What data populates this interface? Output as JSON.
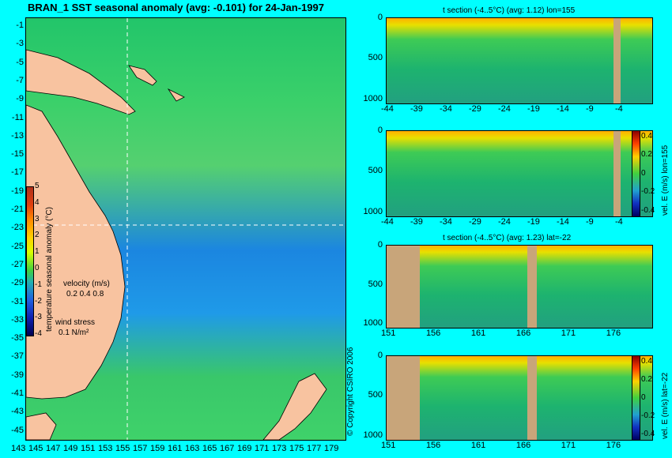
{
  "map": {
    "title": "BRAN_1 SST seasonal anomaly (avg: -0.101) for 24-Jan-1997",
    "lat_ticks": [
      "-1",
      "-3",
      "-5",
      "-7",
      "-9",
      "-11",
      "-13",
      "-15",
      "-17",
      "-19",
      "-21",
      "-23",
      "-25",
      "-27",
      "-29",
      "-31",
      "-33",
      "-35",
      "-37",
      "-39",
      "-41",
      "-43",
      "-45"
    ],
    "lon_ticks": [
      "143",
      "145",
      "147",
      "149",
      "151",
      "153",
      "155",
      "157",
      "159",
      "161",
      "163",
      "165",
      "167",
      "169",
      "171",
      "173",
      "175",
      "177",
      "179"
    ],
    "colorbar": {
      "label": "temperature seasonal anomaly (°C)",
      "ticks": [
        "5",
        "4",
        "3",
        "2",
        "1",
        "0",
        "-1",
        "-2",
        "-3",
        "-4"
      ]
    },
    "legend": {
      "velocity_label": "velocity (m/s)",
      "velocity_scale": "0.2 0.4 0.8",
      "wind_label": "wind stress",
      "wind_scale": "0.1 N/m²"
    },
    "copyright": "© Copyright CSIRO 2006"
  },
  "sections": [
    {
      "title": "t section (-4..5°C) (avg: 1.12) lon=155",
      "x_ticks": [
        "-44",
        "-39",
        "-34",
        "-29",
        "-24",
        "-19",
        "-14",
        "-9",
        "-4"
      ],
      "y_ticks": [
        "0",
        "500",
        "1000"
      ]
    },
    {
      "title": "",
      "x_ticks": [
        "-44",
        "-39",
        "-34",
        "-29",
        "-24",
        "-19",
        "-14",
        "-9",
        "-4"
      ],
      "y_ticks": [
        "0",
        "500",
        "1000"
      ],
      "colorbar_label": "vel. E (m/s) lon=155",
      "colorbar_ticks": [
        "0.4",
        "0.2",
        "0",
        "-0.2",
        "-0.4"
      ]
    },
    {
      "title": "t section (-4..5°C) (avg: 1.23) lat=-22",
      "x_ticks": [
        "151",
        "156",
        "161",
        "166",
        "171",
        "176"
      ],
      "y_ticks": [
        "0",
        "500",
        "1000"
      ]
    },
    {
      "title": "",
      "x_ticks": [
        "151",
        "156",
        "161",
        "166",
        "171",
        "176"
      ],
      "y_ticks": [
        "0",
        "500",
        "1000"
      ],
      "colorbar_label": "vel. E (m/s) lat=-22",
      "colorbar_ticks": [
        "0.4",
        "0.2",
        "0",
        "-0.2",
        "-0.4"
      ]
    }
  ]
}
